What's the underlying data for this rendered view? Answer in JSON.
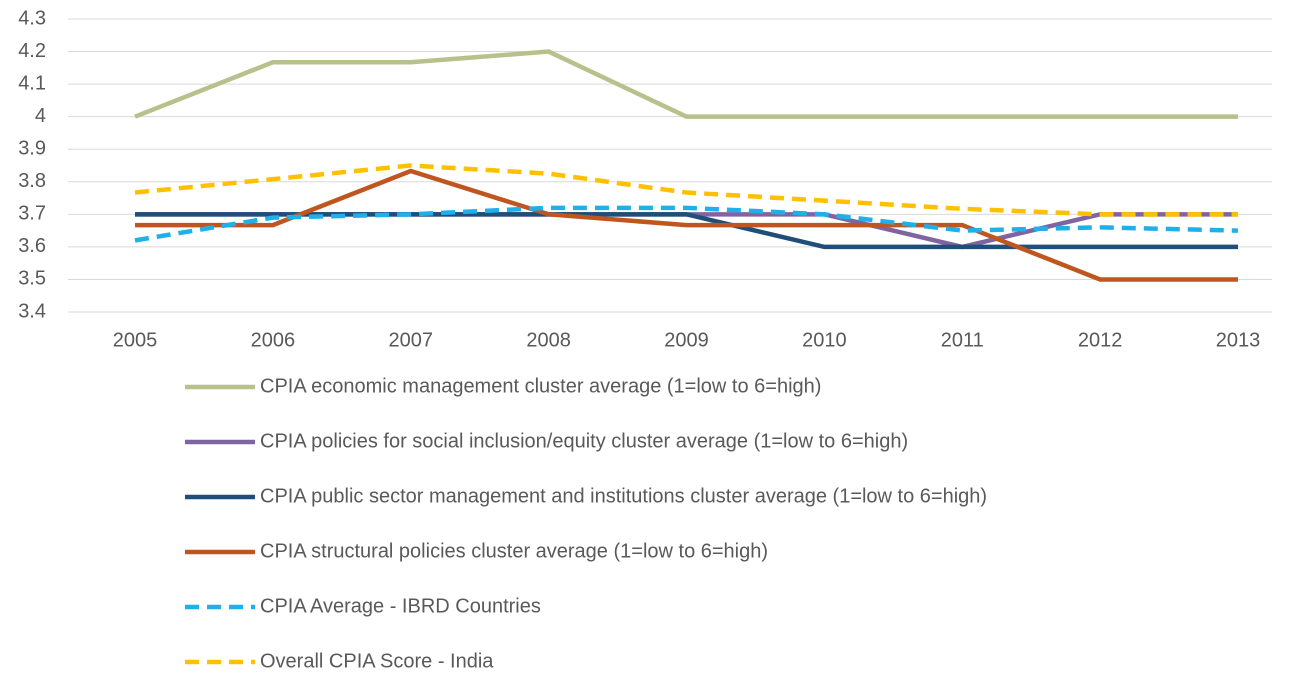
{
  "chart_data": {
    "type": "line",
    "x": [
      2005,
      2006,
      2007,
      2008,
      2009,
      2010,
      2011,
      2012,
      2013
    ],
    "xlim": [
      2005,
      2013
    ],
    "ylim": [
      3.4,
      4.3
    ],
    "yticks": [
      3.4,
      3.5,
      3.6,
      3.7,
      3.8,
      3.9,
      4,
      4.1,
      4.2,
      4.3
    ],
    "grid": true,
    "legend": "bottom",
    "series": [
      {
        "name": "CPIA economic management cluster average (1=low to 6=high)",
        "color": "#b6c18c",
        "dashed": false,
        "values": [
          4,
          4.167,
          4.167,
          4.2,
          4,
          4,
          4,
          4,
          4
        ]
      },
      {
        "name": "CPIA policies for social inclusion/equity cluster average (1=low to 6=high)",
        "color": "#8064a2",
        "dashed": false,
        "values": [
          3.7,
          3.7,
          3.7,
          3.7,
          3.7,
          3.7,
          3.6,
          3.7,
          3.7
        ]
      },
      {
        "name": "CPIA public sector management and institutions cluster average (1=low to 6=high)",
        "color": "#1f4e79",
        "dashed": false,
        "values": [
          3.7,
          3.7,
          3.7,
          3.7,
          3.7,
          3.6,
          3.6,
          3.6,
          3.6
        ]
      },
      {
        "name": "CPIA structural policies cluster average (1=low to 6=high)",
        "color": "#c0561f",
        "dashed": false,
        "values": [
          3.667,
          3.667,
          3.833,
          3.7,
          3.667,
          3.667,
          3.667,
          3.5,
          3.5
        ]
      },
      {
        "name": "CPIA Average - IBRD Countries",
        "color": "#1fb0ea",
        "dashed": true,
        "values": [
          3.62,
          3.69,
          3.7,
          3.72,
          3.72,
          3.7,
          3.65,
          3.66,
          3.65
        ]
      },
      {
        "name": "Overall CPIA Score - India",
        "color": "#ffc000",
        "dashed": true,
        "values": [
          3.767,
          3.808,
          3.85,
          3.825,
          3.767,
          3.742,
          3.717,
          3.7,
          3.7
        ]
      }
    ]
  }
}
